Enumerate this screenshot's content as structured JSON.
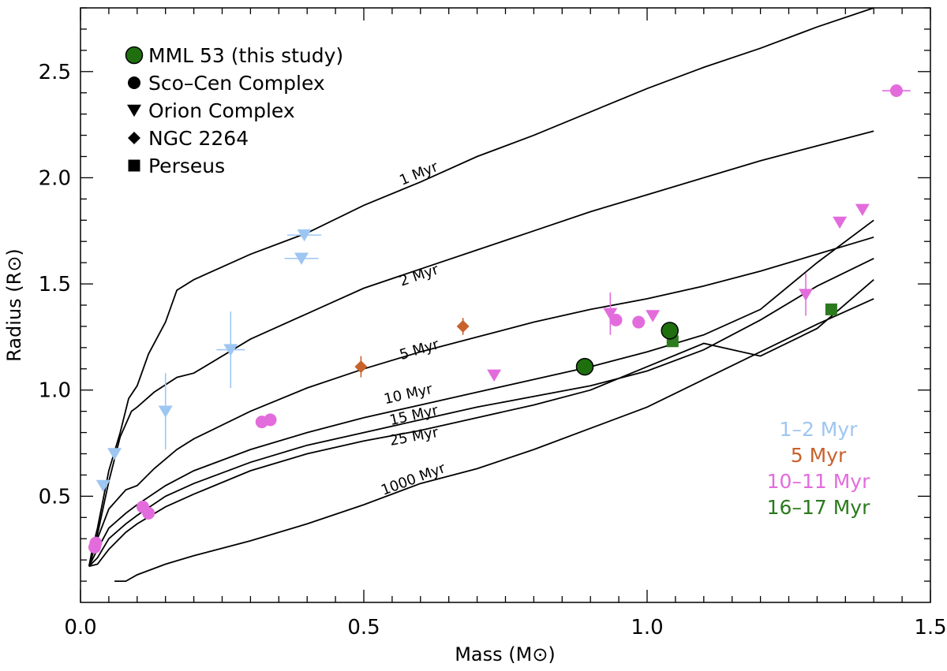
{
  "chart_data": {
    "type": "scatter",
    "xlabel": "Mass (M⊙)",
    "ylabel": "Radius (R⊙)",
    "xlim": [
      0.0,
      1.5
    ],
    "ylim": [
      0.0,
      2.8
    ],
    "x_ticks": [
      "0.0",
      "0.5",
      "1.0",
      "1.5"
    ],
    "y_ticks": [
      "0.5",
      "1.0",
      "1.5",
      "2.0",
      "2.5"
    ],
    "legend": {
      "placement": "top-left",
      "entries": [
        {
          "marker": "circle-big",
          "label": "MML 53 (this study)",
          "color": "#1f6f0f"
        },
        {
          "marker": "circle",
          "label": "Sco–Cen Complex",
          "color": "#000000"
        },
        {
          "marker": "triangle-down",
          "label": "Orion Complex",
          "color": "#000000"
        },
        {
          "marker": "diamond",
          "label": "NGC 2264",
          "color": "#000000"
        },
        {
          "marker": "square",
          "label": "Perseus",
          "color": "#000000"
        }
      ]
    },
    "age_key": {
      "placement": "bottom-right",
      "entries": [
        {
          "label": "1–2 Myr",
          "color": "#9ec6f2"
        },
        {
          "label": "5 Myr",
          "color": "#c8622c"
        },
        {
          "label": "10–11 Myr",
          "color": "#e36cdc"
        },
        {
          "label": "16–17 Myr",
          "color": "#2b7a1d"
        }
      ]
    },
    "isochrones": [
      {
        "label": "1 Myr",
        "label_at": [
          0.6,
          2.0
        ],
        "points": [
          [
            0.015,
            0.17
          ],
          [
            0.02,
            0.24
          ],
          [
            0.03,
            0.35
          ],
          [
            0.05,
            0.62
          ],
          [
            0.07,
            0.8
          ],
          [
            0.085,
            0.96
          ],
          [
            0.1,
            1.02
          ],
          [
            0.12,
            1.17
          ],
          [
            0.15,
            1.32
          ],
          [
            0.17,
            1.47
          ],
          [
            0.2,
            1.52
          ],
          [
            0.3,
            1.64
          ],
          [
            0.4,
            1.74
          ],
          [
            0.5,
            1.87
          ],
          [
            0.6,
            1.98
          ],
          [
            0.7,
            2.1
          ],
          [
            0.8,
            2.2
          ],
          [
            0.9,
            2.31
          ],
          [
            1.0,
            2.42
          ],
          [
            1.1,
            2.52
          ],
          [
            1.2,
            2.61
          ],
          [
            1.3,
            2.71
          ],
          [
            1.4,
            2.8
          ]
        ]
      },
      {
        "label": "2 Myr",
        "label_at": [
          0.6,
          1.52
        ],
        "points": [
          [
            0.015,
            0.17
          ],
          [
            0.03,
            0.32
          ],
          [
            0.05,
            0.57
          ],
          [
            0.07,
            0.78
          ],
          [
            0.09,
            0.9
          ],
          [
            0.1,
            0.92
          ],
          [
            0.13,
            0.99
          ],
          [
            0.17,
            1.06
          ],
          [
            0.2,
            1.08
          ],
          [
            0.3,
            1.24
          ],
          [
            0.4,
            1.36
          ],
          [
            0.5,
            1.48
          ],
          [
            0.6,
            1.57
          ],
          [
            0.7,
            1.66
          ],
          [
            0.8,
            1.75
          ],
          [
            0.9,
            1.84
          ],
          [
            1.0,
            1.92
          ],
          [
            1.1,
            2.0
          ],
          [
            1.2,
            2.08
          ],
          [
            1.3,
            2.15
          ],
          [
            1.4,
            2.22
          ]
        ]
      },
      {
        "label": "5 Myr",
        "label_at": [
          0.6,
          1.17
        ],
        "points": [
          [
            0.015,
            0.17
          ],
          [
            0.03,
            0.3
          ],
          [
            0.05,
            0.44
          ],
          [
            0.08,
            0.53
          ],
          [
            0.1,
            0.55
          ],
          [
            0.13,
            0.63
          ],
          [
            0.17,
            0.72
          ],
          [
            0.2,
            0.77
          ],
          [
            0.3,
            0.9
          ],
          [
            0.4,
            1.01
          ],
          [
            0.5,
            1.1
          ],
          [
            0.6,
            1.18
          ],
          [
            0.7,
            1.25
          ],
          [
            0.8,
            1.32
          ],
          [
            0.9,
            1.38
          ],
          [
            1.0,
            1.43
          ],
          [
            1.1,
            1.49
          ],
          [
            1.2,
            1.56
          ],
          [
            1.3,
            1.64
          ],
          [
            1.4,
            1.72
          ]
        ]
      },
      {
        "label": "10 Myr",
        "label_at": [
          0.58,
          0.96
        ],
        "points": [
          [
            0.015,
            0.17
          ],
          [
            0.03,
            0.25
          ],
          [
            0.05,
            0.35
          ],
          [
            0.08,
            0.42
          ],
          [
            0.1,
            0.46
          ],
          [
            0.15,
            0.55
          ],
          [
            0.2,
            0.62
          ],
          [
            0.3,
            0.72
          ],
          [
            0.4,
            0.8
          ],
          [
            0.5,
            0.87
          ],
          [
            0.6,
            0.93
          ],
          [
            0.7,
            0.99
          ],
          [
            0.8,
            1.05
          ],
          [
            0.9,
            1.11
          ],
          [
            1.0,
            1.18
          ],
          [
            1.1,
            1.26
          ],
          [
            1.2,
            1.38
          ],
          [
            1.3,
            1.6
          ],
          [
            1.4,
            1.8
          ]
        ]
      },
      {
        "label": "15 Myr",
        "label_at": [
          0.59,
          0.86
        ],
        "points": [
          [
            0.015,
            0.17
          ],
          [
            0.03,
            0.21
          ],
          [
            0.05,
            0.3
          ],
          [
            0.08,
            0.37
          ],
          [
            0.1,
            0.41
          ],
          [
            0.15,
            0.5
          ],
          [
            0.2,
            0.56
          ],
          [
            0.3,
            0.66
          ],
          [
            0.4,
            0.74
          ],
          [
            0.5,
            0.8
          ],
          [
            0.6,
            0.86
          ],
          [
            0.7,
            0.92
          ],
          [
            0.8,
            0.97
          ],
          [
            0.9,
            1.02
          ],
          [
            1.0,
            1.09
          ],
          [
            1.1,
            1.19
          ],
          [
            1.2,
            1.33
          ],
          [
            1.3,
            1.49
          ],
          [
            1.4,
            1.62
          ]
        ]
      },
      {
        "label": "25 Myr",
        "label_at": [
          0.59,
          0.76
        ],
        "points": [
          [
            0.015,
            0.17
          ],
          [
            0.03,
            0.18
          ],
          [
            0.05,
            0.25
          ],
          [
            0.08,
            0.33
          ],
          [
            0.1,
            0.37
          ],
          [
            0.15,
            0.45
          ],
          [
            0.2,
            0.51
          ],
          [
            0.3,
            0.62
          ],
          [
            0.4,
            0.7
          ],
          [
            0.5,
            0.76
          ],
          [
            0.6,
            0.81
          ],
          [
            0.7,
            0.87
          ],
          [
            0.8,
            0.93
          ],
          [
            0.9,
            1.0
          ],
          [
            1.0,
            1.11
          ],
          [
            1.1,
            1.22
          ],
          [
            1.2,
            1.16
          ],
          [
            1.3,
            1.29
          ],
          [
            1.4,
            1.52
          ]
        ]
      },
      {
        "label": "1000 Myr",
        "label_at": [
          0.59,
          0.56
        ],
        "points": [
          [
            0.06,
            0.1
          ],
          [
            0.08,
            0.1
          ],
          [
            0.1,
            0.13
          ],
          [
            0.15,
            0.18
          ],
          [
            0.2,
            0.22
          ],
          [
            0.3,
            0.29
          ],
          [
            0.4,
            0.37
          ],
          [
            0.5,
            0.46
          ],
          [
            0.6,
            0.56
          ],
          [
            0.7,
            0.63
          ],
          [
            0.8,
            0.72
          ],
          [
            0.9,
            0.82
          ],
          [
            1.0,
            0.92
          ],
          [
            1.1,
            1.05
          ],
          [
            1.2,
            1.18
          ],
          [
            1.3,
            1.31
          ],
          [
            1.4,
            1.43
          ]
        ]
      }
    ],
    "series": [
      {
        "group": "1–2 Myr",
        "marker": "triangle-down",
        "color": "#9ec6f2",
        "points": [
          {
            "x": 0.04,
            "y": 0.55,
            "xerr": 0.005,
            "yerr": 0.02
          },
          {
            "x": 0.06,
            "y": 0.7,
            "xerr": 0.005,
            "yerr": 0.02
          },
          {
            "x": 0.15,
            "y": 0.9,
            "xerr": 0.005,
            "yerr": 0.18
          },
          {
            "x": 0.265,
            "y": 1.19,
            "xerr": 0.025,
            "yerr": 0.18
          },
          {
            "x": 0.39,
            "y": 1.62,
            "xerr": 0.03,
            "yerr": 0.0
          },
          {
            "x": 0.395,
            "y": 1.73,
            "xerr": 0.03,
            "yerr": 0.0
          }
        ]
      },
      {
        "group": "5 Myr",
        "marker": "diamond",
        "color": "#c8622c",
        "points": [
          {
            "x": 0.495,
            "y": 1.11,
            "xerr": 0.0,
            "yerr": 0.05
          },
          {
            "x": 0.675,
            "y": 1.3,
            "xerr": 0.0,
            "yerr": 0.04
          }
        ]
      },
      {
        "group": "10–11 Myr",
        "marker": "circle",
        "color": "#e36cdc",
        "points": [
          {
            "x": 0.025,
            "y": 0.26,
            "xerr": 0.0,
            "yerr": 0.0
          },
          {
            "x": 0.027,
            "y": 0.28,
            "xerr": 0.0,
            "yerr": 0.0
          },
          {
            "x": 0.11,
            "y": 0.45,
            "xerr": 0.0,
            "yerr": 0.0
          },
          {
            "x": 0.12,
            "y": 0.42,
            "xerr": 0.0,
            "yerr": 0.0
          },
          {
            "x": 0.32,
            "y": 0.85,
            "xerr": 0.0,
            "yerr": 0.0
          },
          {
            "x": 0.335,
            "y": 0.86,
            "xerr": 0.0,
            "yerr": 0.0
          },
          {
            "x": 0.945,
            "y": 1.33,
            "xerr": 0.0,
            "yerr": 0.0
          },
          {
            "x": 0.985,
            "y": 1.32,
            "xerr": 0.0,
            "yerr": 0.0
          },
          {
            "x": 1.44,
            "y": 2.41,
            "xerr": 0.025,
            "yerr": 0.0
          }
        ]
      },
      {
        "group": "10–11 Myr",
        "marker": "triangle-down",
        "color": "#e36cdc",
        "points": [
          {
            "x": 0.73,
            "y": 1.07,
            "xerr": 0.0,
            "yerr": 0.0
          },
          {
            "x": 0.935,
            "y": 1.36,
            "xerr": 0.0,
            "yerr": 0.1
          },
          {
            "x": 1.01,
            "y": 1.35,
            "xerr": 0.0,
            "yerr": 0.0
          },
          {
            "x": 1.28,
            "y": 1.45,
            "xerr": 0.0,
            "yerr": 0.1
          },
          {
            "x": 1.34,
            "y": 1.79,
            "xerr": 0.0,
            "yerr": 0.0
          },
          {
            "x": 1.38,
            "y": 1.85,
            "xerr": 0.0,
            "yerr": 0.0
          }
        ]
      },
      {
        "group": "16–17 Myr",
        "marker": "square",
        "color": "#2b7a1d",
        "points": [
          {
            "x": 1.045,
            "y": 1.23,
            "xerr": 0.0,
            "yerr": 0.0
          },
          {
            "x": 1.325,
            "y": 1.38,
            "xerr": 0.0,
            "yerr": 0.0
          }
        ]
      },
      {
        "group": "MML 53 (this study)",
        "marker": "circle-big",
        "color": "#1f6f0f",
        "points": [
          {
            "x": 0.89,
            "y": 1.11,
            "xerr": 0.0,
            "yerr": 0.04
          },
          {
            "x": 1.04,
            "y": 1.28,
            "xerr": 0.0,
            "yerr": 0.04
          }
        ]
      }
    ]
  }
}
